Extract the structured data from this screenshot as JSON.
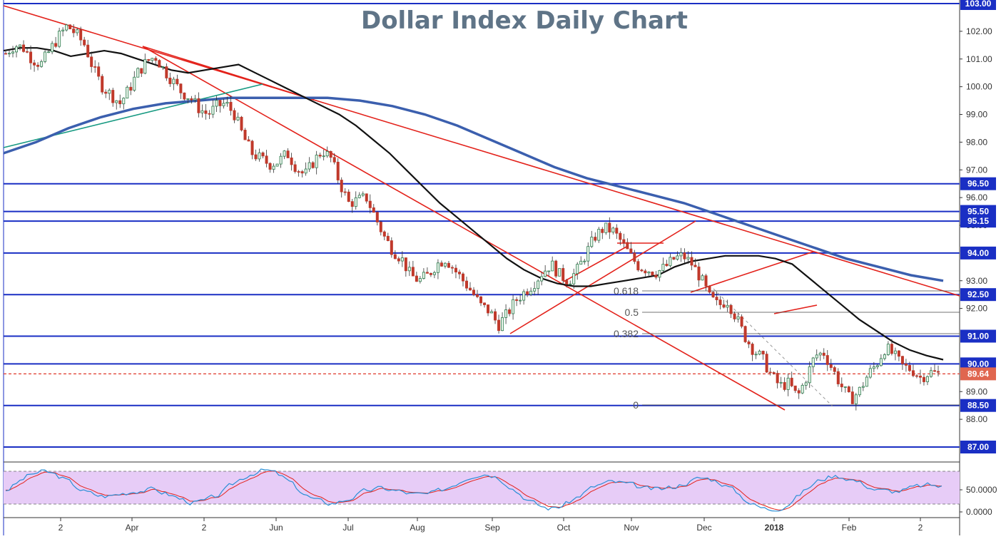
{
  "chart_data": {
    "type": "candlestick",
    "title": "Dollar Index Daily Chart",
    "y_range": [
      87.0,
      103.0
    ],
    "y_ticks": [
      "103.00",
      "102.00",
      "101.00",
      "100.00",
      "99.00",
      "98.00",
      "97.00",
      "96.00",
      "95.00",
      "94.00",
      "93.00",
      "92.00",
      "91.00",
      "90.00",
      "89.00",
      "88.00",
      "87.00"
    ],
    "x_ticks": [
      "2",
      "Apr",
      "2",
      "Jun",
      "Jul",
      "Aug",
      "Sep",
      "Oct",
      "Nov",
      "Dec",
      "2018",
      "Feb",
      "2"
    ],
    "horizontal_levels": [
      "103.00",
      "96.50",
      "95.50",
      "95.15",
      "94.00",
      "92.50",
      "91.00",
      "90.00",
      "88.50",
      "87.00"
    ],
    "current_price": "89.64",
    "fibonacci_labels": [
      "0.618",
      "0.5",
      "0.382",
      "0"
    ],
    "price_path": [
      101.2,
      101.5,
      101.4,
      101.0,
      100.8,
      101.3,
      101.8,
      102.2,
      101.9,
      101.5,
      100.6,
      100.0,
      99.7,
      99.4,
      99.9,
      100.5,
      100.9,
      101.1,
      100.6,
      100.2,
      99.8,
      99.6,
      99.2,
      99.0,
      99.3,
      99.4,
      99.0,
      98.2,
      97.6,
      97.4,
      97.2,
      97.3,
      97.6,
      97.1,
      96.8,
      97.3,
      97.7,
      97.4,
      96.5,
      95.8,
      95.9,
      96.0,
      95.3,
      94.6,
      94.1,
      93.8,
      93.2,
      93.0,
      93.2,
      93.6,
      93.8,
      93.4,
      93.0,
      92.6,
      92.1,
      91.9,
      91.4,
      91.8,
      92.3,
      92.6,
      92.9,
      93.3,
      93.6,
      93.2,
      93.0,
      93.4,
      94.0,
      94.6,
      94.9,
      94.8,
      94.4,
      93.9,
      93.5,
      93.4,
      93.3,
      93.5,
      93.8,
      93.9,
      93.6,
      93.1,
      92.4,
      92.1,
      92.3,
      91.7,
      91.0,
      90.5,
      90.2,
      89.6,
      89.2,
      89.3,
      88.8,
      89.5,
      90.3,
      90.4,
      89.8,
      89.2,
      88.7,
      89.0,
      89.6,
      90.0,
      90.6,
      90.3,
      89.9,
      89.8,
      89.5,
      89.7,
      89.64
    ],
    "ma_fast": [
      101.3,
      101.4,
      101.4,
      101.3,
      101.1,
      101.2,
      101.3,
      101.2,
      101.0,
      100.8,
      100.6,
      100.5,
      100.6,
      100.7,
      100.8,
      100.5,
      100.2,
      99.9,
      99.6,
      99.3,
      99.0,
      98.6,
      98.1,
      97.6,
      97.0,
      96.4,
      95.8,
      95.3,
      94.8,
      94.3,
      93.8,
      93.4,
      93.1,
      92.9,
      92.8,
      92.8,
      92.9,
      93.0,
      93.1,
      93.2,
      93.5,
      93.7,
      93.8,
      93.9,
      93.9,
      93.9,
      93.8,
      93.6,
      93.1,
      92.6,
      92.1,
      91.6,
      91.2,
      90.8,
      90.5,
      90.3,
      90.15
    ],
    "ma_slow": [
      97.6,
      98.0,
      98.5,
      98.9,
      99.2,
      99.4,
      99.5,
      99.6,
      99.6,
      99.6,
      99.6,
      99.5,
      99.3,
      99.0,
      98.6,
      98.1,
      97.6,
      97.1,
      96.7,
      96.4,
      96.1,
      95.8,
      95.4,
      95.0,
      94.6,
      94.2,
      93.8,
      93.5,
      93.2,
      93.0
    ],
    "stochastic_axis": [
      "50.0000",
      "0.0000"
    ]
  }
}
